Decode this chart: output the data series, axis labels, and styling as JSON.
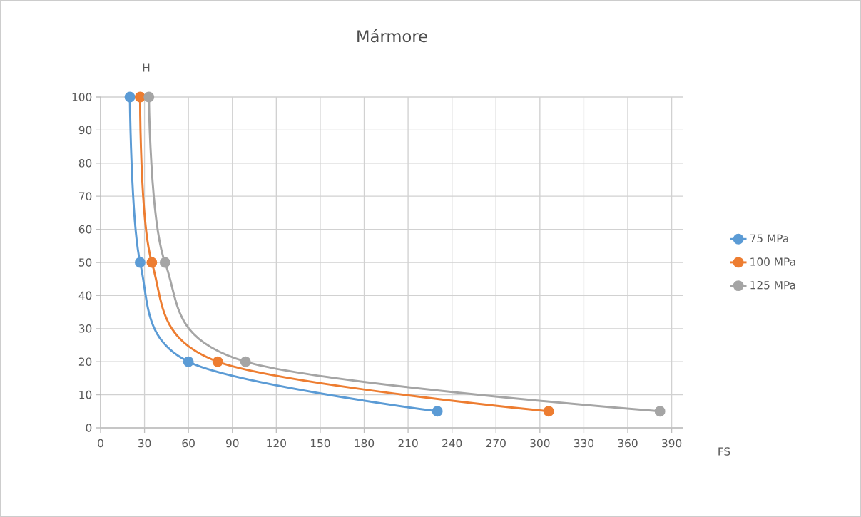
{
  "chart_data": {
    "type": "line",
    "title": "Mármore",
    "xlabel": "FS",
    "ylabel": "H",
    "xlim": [
      0,
      398
    ],
    "ylim": [
      0,
      100
    ],
    "xticks": [
      0,
      30,
      60,
      90,
      120,
      150,
      180,
      210,
      240,
      270,
      300,
      330,
      360,
      390
    ],
    "yticks": [
      0,
      10,
      20,
      30,
      40,
      50,
      60,
      70,
      80,
      90,
      100
    ],
    "grid": true,
    "legend": "right",
    "marker": "circle",
    "line_style": "solid",
    "series": [
      {
        "name": "75 MPa",
        "color": "#5b9bd5",
        "x": [
          230,
          60,
          27,
          20
        ],
        "values": [
          5,
          20,
          50,
          100
        ]
      },
      {
        "name": "100 MPa",
        "color": "#ed7d31",
        "x": [
          306,
          80,
          35,
          27
        ],
        "values": [
          5,
          20,
          50,
          100
        ]
      },
      {
        "name": "125 MPa",
        "color": "#a5a5a5",
        "x": [
          382,
          99,
          44,
          33
        ],
        "values": [
          5,
          20,
          50,
          100
        ]
      }
    ]
  }
}
